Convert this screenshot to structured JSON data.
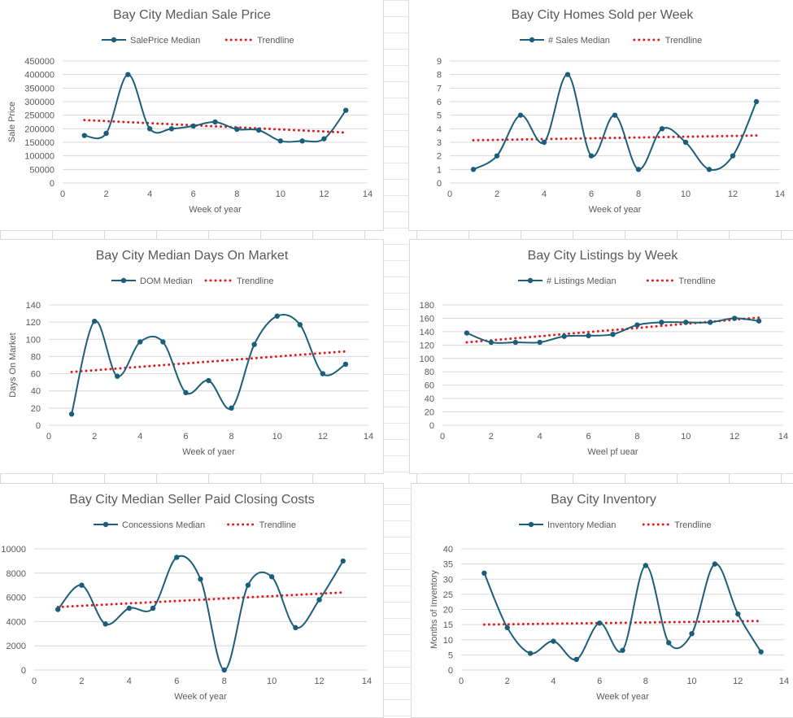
{
  "colors": {
    "series": "#1b5e7a",
    "trend": "#e31a1c",
    "grid": "#d9d9d9",
    "text": "#595959"
  },
  "chart_data": [
    {
      "id": "c1",
      "type": "line",
      "title": "Bay City Median Sale Price",
      "series_name": "SalePrice Median",
      "trend_name": "Trendline",
      "xlabel": "Week of year",
      "ylabel": "Sale Price",
      "xlim": [
        0,
        14
      ],
      "xticks": [
        0,
        2,
        4,
        6,
        8,
        10,
        12,
        14
      ],
      "ylim": [
        0,
        450000
      ],
      "yticks": [
        0,
        50000,
        100000,
        150000,
        200000,
        250000,
        300000,
        350000,
        400000,
        450000
      ],
      "x": [
        1,
        2,
        3,
        4,
        5,
        6,
        7,
        8,
        9,
        10,
        11,
        12,
        13
      ],
      "values": [
        175000,
        183000,
        400000,
        200000,
        200000,
        210000,
        225000,
        198000,
        195000,
        155000,
        155000,
        163000,
        268000
      ],
      "trend": [
        232000,
        186000
      ]
    },
    {
      "id": "c2",
      "type": "line",
      "title": "Bay City Homes Sold per Week",
      "series_name": "# Sales Median",
      "trend_name": "Trendline",
      "xlabel": "Week of year",
      "ylabel": "",
      "xlim": [
        0,
        14
      ],
      "xticks": [
        0,
        2,
        4,
        6,
        8,
        10,
        12,
        14
      ],
      "ylim": [
        0,
        9
      ],
      "yticks": [
        0,
        1,
        2,
        3,
        4,
        5,
        6,
        7,
        8,
        9
      ],
      "x": [
        1,
        2,
        3,
        4,
        5,
        6,
        7,
        8,
        9,
        10,
        11,
        12,
        13
      ],
      "values": [
        1,
        2,
        5,
        3,
        8,
        2,
        5,
        1,
        4,
        3,
        1,
        2,
        6
      ],
      "trend": [
        3.15,
        3.5
      ]
    },
    {
      "id": "c3",
      "type": "line",
      "title": "Bay City Median Days On Market",
      "series_name": "DOM Median",
      "trend_name": "Trendline",
      "xlabel": "Week of yaer",
      "ylabel": "Days On Market",
      "xlim": [
        0,
        14
      ],
      "xticks": [
        0,
        2,
        4,
        6,
        8,
        10,
        12,
        14
      ],
      "ylim": [
        0,
        140
      ],
      "yticks": [
        0,
        20,
        40,
        60,
        80,
        100,
        120,
        140
      ],
      "x": [
        1,
        2,
        3,
        4,
        5,
        6,
        7,
        8,
        9,
        10,
        11,
        12,
        13
      ],
      "values": [
        13,
        121,
        57,
        97,
        97,
        38,
        52,
        20,
        94,
        127,
        117,
        60,
        71
      ],
      "trend": [
        62,
        86
      ]
    },
    {
      "id": "c4",
      "type": "line",
      "title": "Bay City Listings by Week",
      "series_name": "# Listings Median",
      "trend_name": "Trendline",
      "xlabel": "Weel pf uear",
      "ylabel": "",
      "xlim": [
        0,
        14
      ],
      "xticks": [
        0,
        2,
        4,
        6,
        8,
        10,
        12,
        14
      ],
      "ylim": [
        0,
        180
      ],
      "yticks": [
        0,
        20,
        40,
        60,
        80,
        100,
        120,
        140,
        160,
        180
      ],
      "x": [
        1,
        2,
        3,
        4,
        5,
        6,
        7,
        8,
        9,
        10,
        11,
        12,
        13
      ],
      "values": [
        138,
        124,
        124,
        124,
        133,
        134,
        136,
        150,
        154,
        154,
        154,
        160,
        156
      ],
      "trend": [
        124,
        161
      ]
    },
    {
      "id": "c5",
      "type": "line",
      "title": "Bay City Median Seller Paid Closing Costs",
      "series_name": "Concessions Median",
      "trend_name": "Trendline",
      "xlabel": "Week of year",
      "ylabel": "",
      "xlim": [
        0,
        14
      ],
      "xticks": [
        0,
        2,
        4,
        6,
        8,
        10,
        12,
        14
      ],
      "ylim": [
        0,
        10000
      ],
      "yticks": [
        0,
        2000,
        4000,
        6000,
        8000,
        10000
      ],
      "x": [
        1,
        2,
        3,
        4,
        5,
        6,
        7,
        8,
        9,
        10,
        11,
        12,
        13
      ],
      "values": [
        5000,
        7000,
        3800,
        5100,
        5100,
        9300,
        7500,
        0,
        7000,
        7700,
        3500,
        5800,
        9000
      ],
      "trend": [
        5200,
        6400
      ]
    },
    {
      "id": "c6",
      "type": "line",
      "title": "Bay City Inventory",
      "series_name": "Inventory Median",
      "trend_name": "Trendline",
      "xlabel": "Week of year",
      "ylabel": "Months of Inventory",
      "xlim": [
        0,
        14
      ],
      "xticks": [
        0,
        2,
        4,
        6,
        8,
        10,
        12,
        14
      ],
      "ylim": [
        0,
        40
      ],
      "yticks": [
        0,
        5,
        10,
        15,
        20,
        25,
        30,
        35,
        40
      ],
      "x": [
        1,
        2,
        3,
        4,
        5,
        6,
        7,
        8,
        9,
        10,
        11,
        12,
        13
      ],
      "values": [
        32,
        14,
        5.5,
        9.5,
        3.5,
        15.5,
        6.5,
        34.5,
        9,
        12,
        35,
        18.5,
        6
      ],
      "trend": [
        15,
        16.2
      ]
    }
  ]
}
